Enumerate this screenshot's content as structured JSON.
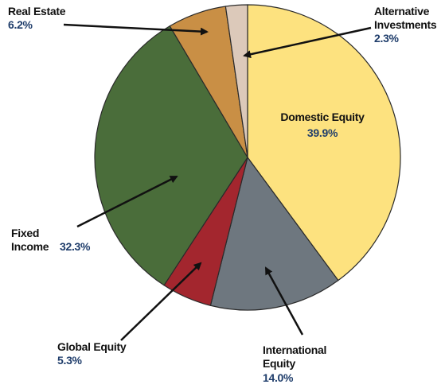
{
  "chart_data": {
    "type": "pie",
    "categories": [
      "Domestic Equity",
      "International Equity",
      "Global Equity",
      "Fixed Income",
      "Real Estate",
      "Alternative Investments"
    ],
    "values": [
      39.9,
      14.0,
      5.3,
      32.3,
      6.2,
      2.3
    ],
    "value_labels": [
      "39.9%",
      "14.0%",
      "5.3%",
      "32.3%",
      "6.2%",
      "2.3%"
    ],
    "colors": [
      "#fde27f",
      "#6e777f",
      "#a3262e",
      "#4a6d3a",
      "#c98f45",
      "#dcc9ba"
    ]
  }
}
